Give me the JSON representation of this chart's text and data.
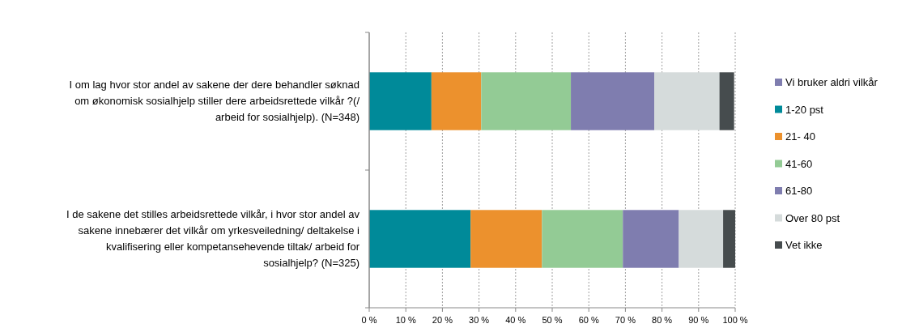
{
  "chart_data": {
    "type": "bar",
    "orientation": "horizontal",
    "stacked": true,
    "categories": [
      "I om lag hvor stor andel av sakene der dere behandler søknad om økonomisk sosialhjelp stiller dere arbeidsrettede vilkår ?(/ arbeid for sosialhjelp).  (N=348)",
      "I de sakene det stilles arbeidsrettede vilkår, i hvor stor andel av sakene innebærer det vilkår om yrkesveiledning/ deltakelse i kvalifisering eller kompetansehevende tiltak/ arbeid for sosialhjelp?   (N=325)"
    ],
    "series": [
      {
        "name": "Vi bruker aldri vilkår",
        "color": "#7f7daf",
        "values": [
          null,
          null
        ]
      },
      {
        "name": "1-20 pst",
        "color": "#008a99",
        "values": [
          17.0,
          27.7
        ]
      },
      {
        "name": "21- 40",
        "color": "#ec912d",
        "values": [
          13.6,
          19.5
        ]
      },
      {
        "name": "41-60",
        "color": "#93cb95",
        "values": [
          24.5,
          22.1
        ]
      },
      {
        "name": "61-80",
        "color": "#7f7daf",
        "values": [
          22.8,
          15.3
        ]
      },
      {
        "name": "Over 80 pst",
        "color": "#d5dbdb",
        "values": [
          17.8,
          12.1
        ]
      },
      {
        "name": "Vet ikke",
        "color": "#464c4e",
        "values": [
          4.0,
          3.3
        ]
      }
    ],
    "xlim": [
      0,
      100
    ],
    "xticks": [
      {
        "value": 0,
        "label": "0 %"
      },
      {
        "value": 10,
        "label": "10 %"
      },
      {
        "value": 20,
        "label": "20 %"
      },
      {
        "value": 30,
        "label": "30 %"
      },
      {
        "value": 40,
        "label": "40 %"
      },
      {
        "value": 50,
        "label": "50 %"
      },
      {
        "value": 60,
        "label": "60 %"
      },
      {
        "value": 70,
        "label": "70 %"
      },
      {
        "value": 80,
        "label": "80 %"
      },
      {
        "value": 90,
        "label": "90 %"
      },
      {
        "value": 100,
        "label": "100 %"
      }
    ],
    "grid": "x",
    "legend": "right"
  }
}
